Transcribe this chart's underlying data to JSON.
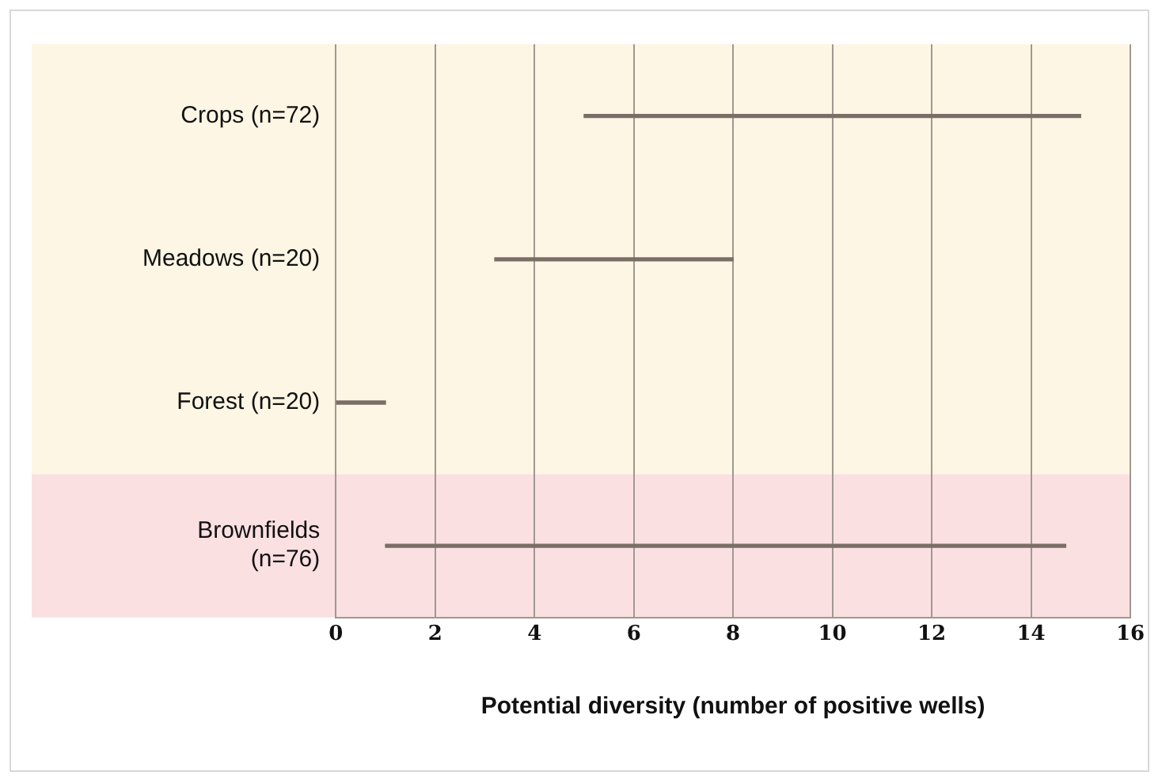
{
  "chart_data": {
    "type": "bar",
    "orientation": "horizontal",
    "xlabel": "Potential diversity (number of positive wells)",
    "categories": [
      "Crops (n=72)",
      "Meadows (n=20)",
      "Forest (n=20)",
      "Brownfields (n=76)"
    ],
    "base": [
      5,
      3.2,
      0,
      1
    ],
    "values": [
      10,
      4.8,
      1,
      13.7
    ],
    "color": "#7a6e66",
    "bands": [
      {
        "axis": "y",
        "from": "Crops (n=72)",
        "to": "Forest (n=20)",
        "color": "#fdf6e4"
      },
      {
        "axis": "y",
        "from": "Brownfields (n=76)",
        "to": "Brownfields (n=76)",
        "color": "#fbe0e2"
      }
    ],
    "xlim": [
      0,
      16
    ],
    "xticks": [
      0,
      2,
      4,
      6,
      8,
      10,
      12,
      14,
      16
    ],
    "grid": "x"
  }
}
